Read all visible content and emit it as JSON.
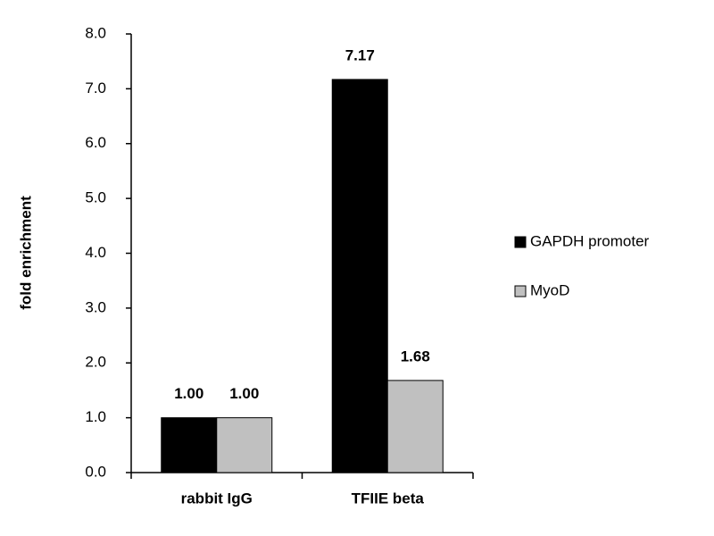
{
  "chart_data": {
    "type": "bar",
    "y_label": "fold enrichment",
    "categories": [
      "rabbit IgG",
      "TFIIE beta"
    ],
    "series": [
      {
        "name": "GAPDH promoter",
        "color": "#000000",
        "values": [
          1.0,
          7.17
        ],
        "value_labels": [
          "1.00",
          "7.17"
        ]
      },
      {
        "name": "MyoD",
        "color": "#c0c0c0",
        "values": [
          1.0,
          1.68
        ],
        "value_labels": [
          "1.00",
          "1.68"
        ]
      }
    ],
    "ylim": [
      0,
      8
    ],
    "yticks": [
      {
        "value": 0,
        "label": "0.0"
      },
      {
        "value": 1,
        "label": "1.0"
      },
      {
        "value": 2,
        "label": "2.0"
      },
      {
        "value": 3,
        "label": "3.0"
      },
      {
        "value": 4,
        "label": "4.0"
      },
      {
        "value": 5,
        "label": "5.0"
      },
      {
        "value": 6,
        "label": "6.0"
      },
      {
        "value": 7,
        "label": "7.0"
      },
      {
        "value": 8,
        "label": "8.0"
      }
    ],
    "legend": "right"
  }
}
